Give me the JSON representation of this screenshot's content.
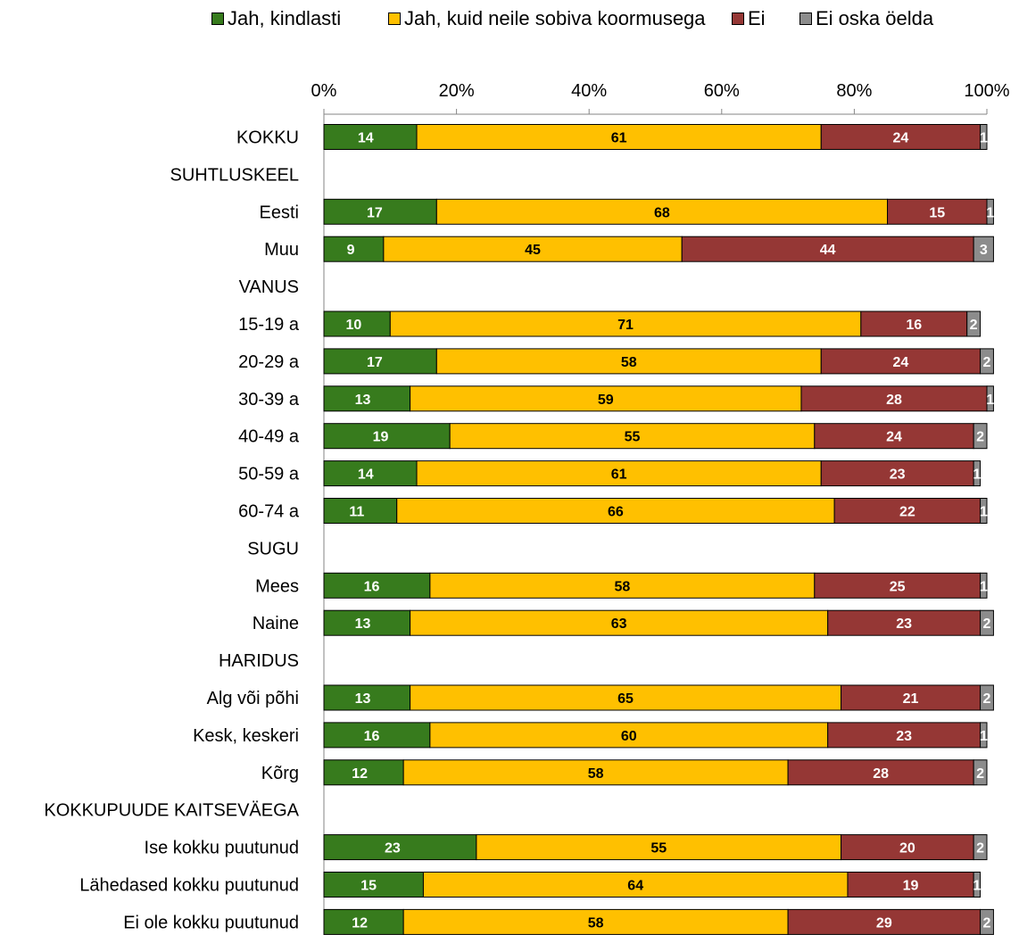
{
  "chart_data": {
    "type": "bar",
    "orientation": "horizontal",
    "stacked": true,
    "percent": true,
    "xlim": [
      0,
      100
    ],
    "ticks": [
      "0%",
      "20%",
      "40%",
      "60%",
      "80%",
      "100%"
    ],
    "grid": false,
    "legend_position": "top",
    "categories": [
      "KOKKU",
      "SUHTLUSKEEL",
      "Eesti",
      "Muu",
      "VANUS",
      "15-19 a",
      "20-29 a",
      "30-39 a",
      "40-49 a",
      "50-59 a",
      "60-74 a",
      "SUGU",
      "Mees",
      "Naine",
      "HARIDUS",
      "Alg või põhi",
      "Kesk, keskeri",
      "Kõrg",
      "KOKKUPUUDE KAITSEVÄEGA",
      "Ise kokku puutunud",
      "Lähedased kokku puutunud",
      "Ei ole kokku puutunud"
    ],
    "series": [
      {
        "name": "Jah, kindlasti",
        "color": "#377b1d",
        "label_color": "#ffffff",
        "values": [
          14,
          null,
          17,
          9,
          null,
          10,
          17,
          13,
          19,
          14,
          11,
          null,
          16,
          13,
          null,
          13,
          16,
          12,
          null,
          23,
          15,
          12
        ]
      },
      {
        "name": "Jah, kuid neile sobiva koormusega",
        "color": "#ffc000",
        "label_color": "#000000",
        "values": [
          61,
          null,
          68,
          45,
          null,
          71,
          58,
          59,
          55,
          61,
          66,
          null,
          58,
          63,
          null,
          65,
          60,
          58,
          null,
          55,
          64,
          58
        ]
      },
      {
        "name": "Ei",
        "color": "#953735",
        "label_color": "#ffffff",
        "values": [
          24,
          null,
          15,
          44,
          null,
          16,
          24,
          28,
          24,
          23,
          22,
          null,
          25,
          23,
          null,
          21,
          23,
          28,
          null,
          20,
          19,
          29
        ]
      },
      {
        "name": "Ei oska öelda",
        "color": "#8c8c8c",
        "label_color": "#ffffff",
        "values": [
          1,
          null,
          1,
          3,
          null,
          2,
          2,
          1,
          2,
          1,
          1,
          null,
          1,
          2,
          null,
          2,
          1,
          2,
          null,
          2,
          1,
          2
        ]
      }
    ]
  }
}
